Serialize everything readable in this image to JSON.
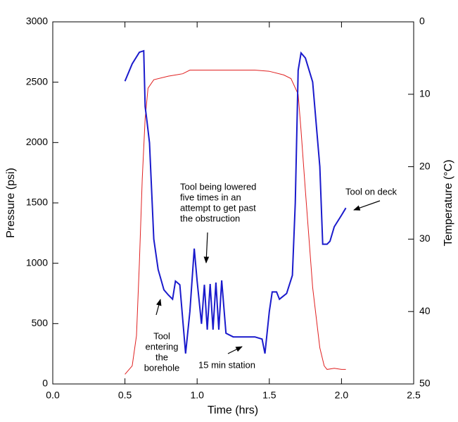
{
  "chart_data": {
    "type": "line",
    "xlabel": "Time (hrs)",
    "ylabel": "Pressure (psi)",
    "y2label": "Temperature (°C)",
    "xlim": [
      0,
      2.5
    ],
    "xticks": [
      {
        "value": 0,
        "label": "0.0"
      },
      0.5,
      {
        "value": 1,
        "label": "1.0"
      },
      1.5,
      {
        "value": 2,
        "label": "2.0"
      },
      2.5
    ],
    "ylim": [
      0,
      3000
    ],
    "yticks": [
      0,
      500,
      1000,
      1500,
      2000,
      2500,
      3000
    ],
    "y2lim": [
      50,
      0
    ],
    "y2ticks": [
      0,
      10,
      20,
      30,
      40,
      50
    ],
    "series": [
      {
        "color": "#e02020",
        "x": [
          0.5,
          0.55,
          0.58,
          0.6,
          0.62,
          0.64,
          0.66,
          0.7,
          0.8,
          0.9,
          0.95,
          1.0,
          1.2,
          1.4,
          1.5,
          1.6,
          1.65,
          1.7,
          1.72,
          1.75,
          1.8,
          1.85,
          1.88,
          1.9,
          1.95,
          2.0,
          2.03
        ],
        "values": [
          80,
          150,
          400,
          1000,
          1700,
          2200,
          2450,
          2520,
          2550,
          2570,
          2600,
          2600,
          2600,
          2600,
          2590,
          2560,
          2530,
          2400,
          2100,
          1600,
          800,
          300,
          150,
          120,
          130,
          120,
          120
        ]
      },
      {
        "color": "#1a1acc",
        "axis": "y2",
        "x": [
          0.5,
          0.55,
          0.6,
          0.63,
          0.64,
          0.65,
          0.67,
          0.7,
          0.73,
          0.77,
          0.8,
          0.83,
          0.85,
          0.88,
          0.92,
          0.95,
          0.98,
          1.0,
          1.03,
          1.05,
          1.07,
          1.09,
          1.11,
          1.13,
          1.15,
          1.17,
          1.2,
          1.25,
          1.4,
          1.45,
          1.47,
          1.5,
          1.52,
          1.55,
          1.57,
          1.62,
          1.66,
          1.68,
          1.7,
          1.72,
          1.75,
          1.8,
          1.85,
          1.87,
          1.9,
          1.92,
          1.95,
          2.0,
          2.03
        ],
        "values": [
          8.2,
          5.8,
          4.2,
          4.0,
          11.7,
          13.3,
          16.7,
          30,
          34.2,
          37,
          37.7,
          38.3,
          35.8,
          36.3,
          45.8,
          40,
          31.3,
          35.8,
          41.7,
          36.3,
          42.5,
          36.2,
          42.5,
          36,
          42.5,
          35.7,
          43,
          43.5,
          43.5,
          43.8,
          45.8,
          40,
          37.3,
          37.3,
          38.3,
          37.5,
          35,
          25,
          6.7,
          4.3,
          5,
          8.3,
          20,
          30.7,
          30.7,
          30.3,
          28.3,
          26.7,
          25.7
        ]
      }
    ],
    "annotations": [
      {
        "lines": [
          "Tool being lowered",
          "five times in an",
          "attempt to get past",
          "the obstruction"
        ]
      },
      {
        "lines": [
          "Tool on deck"
        ]
      },
      {
        "lines": [
          "Tool",
          "entering",
          "the",
          "borehole"
        ]
      },
      {
        "lines": [
          "15 min station"
        ]
      }
    ]
  }
}
